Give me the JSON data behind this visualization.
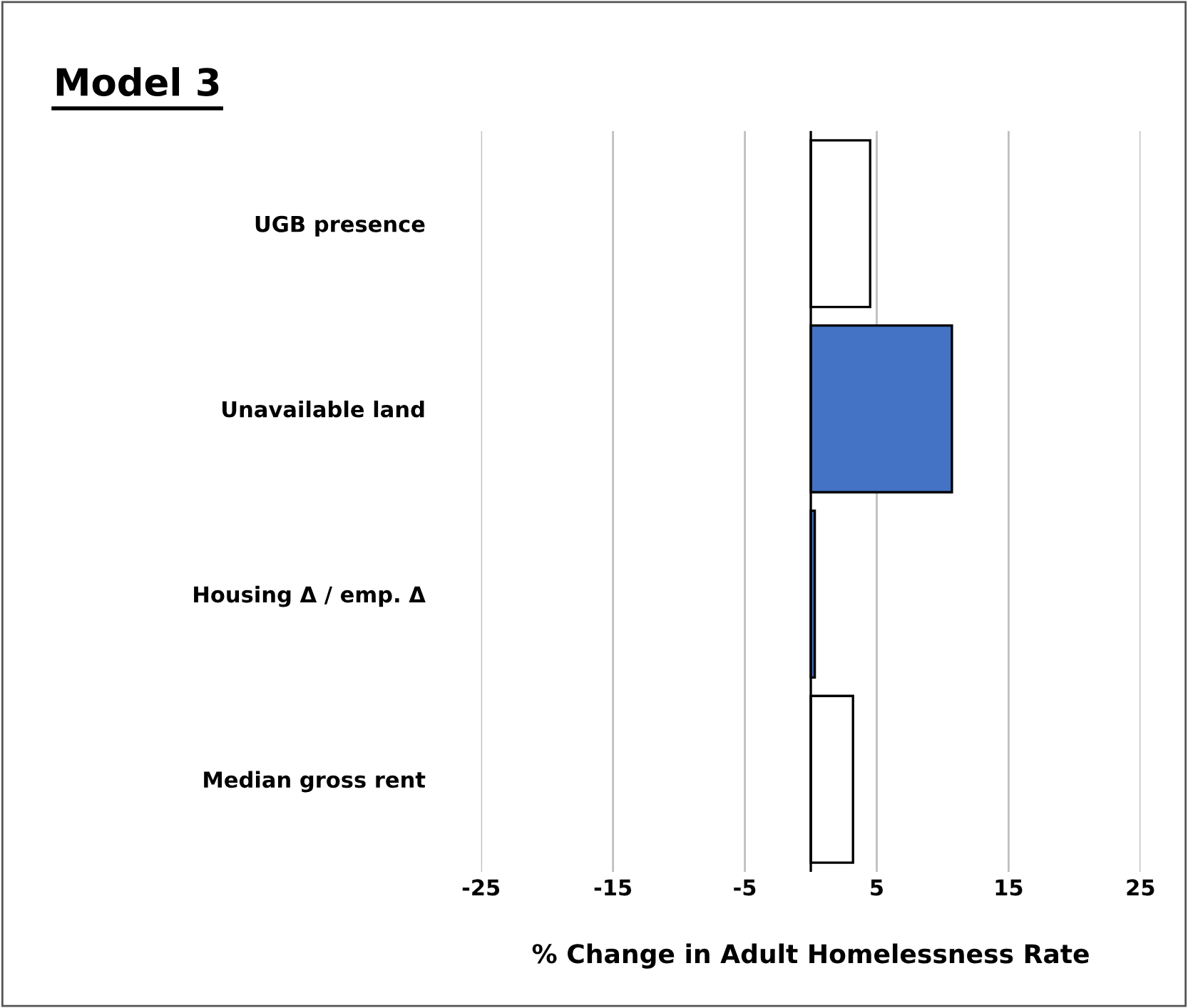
{
  "chart_data": {
    "type": "bar",
    "orientation": "horizontal",
    "title": "Model 3",
    "xlabel": "% Change in Adult Homelessness Rate",
    "categories": [
      "UGB presence",
      "Unavailable land",
      "Housing Δ / emp. Δ",
      "Median gross rent"
    ],
    "values": [
      4.5,
      10.7,
      0.3,
      3.2
    ],
    "colors": [
      "#ffffff",
      "#4472c4",
      "#4472c4",
      "#ffffff"
    ],
    "xlim": [
      -25,
      25
    ],
    "xticks": [
      -25,
      -15,
      -5,
      5,
      15,
      25
    ],
    "grid": "x"
  }
}
